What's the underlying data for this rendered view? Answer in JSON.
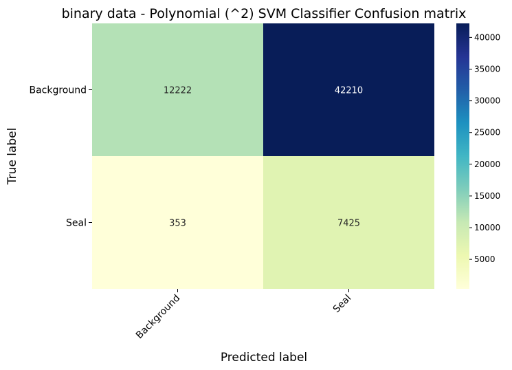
{
  "chart_data": {
    "type": "heatmap",
    "title": "binary data - Polynomial (^2) SVM Classifier Confusion matrix",
    "xlabel": "Predicted label",
    "ylabel": "True label",
    "x_categories": [
      "Background",
      "Seal"
    ],
    "y_categories": [
      "Background",
      "Seal"
    ],
    "values": [
      [
        12222,
        42210
      ],
      [
        353,
        7425
      ]
    ],
    "colormap": "YlGnBu",
    "color_range": [
      353,
      42210
    ],
    "colorbar_ticks": [
      5000,
      10000,
      15000,
      20000,
      25000,
      30000,
      35000,
      40000
    ],
    "annotations": true,
    "grid": false
  },
  "colors": {
    "ylgnbu": [
      "#ffffd9",
      "#edf8b1",
      "#c7e9b4",
      "#7fcdbb",
      "#41b6c4",
      "#1d91c0",
      "#225ea8",
      "#253494",
      "#081d58"
    ]
  }
}
